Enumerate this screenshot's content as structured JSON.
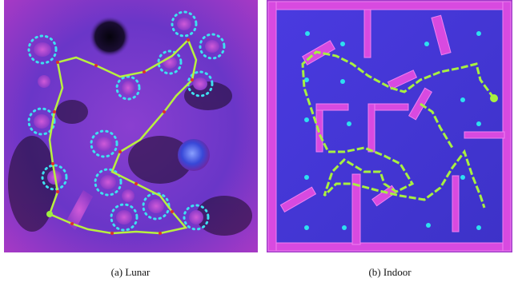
{
  "figure": {
    "panels": [
      {
        "caption": "(a) Lunar"
      },
      {
        "caption": "(b) Indoor"
      }
    ]
  }
}
